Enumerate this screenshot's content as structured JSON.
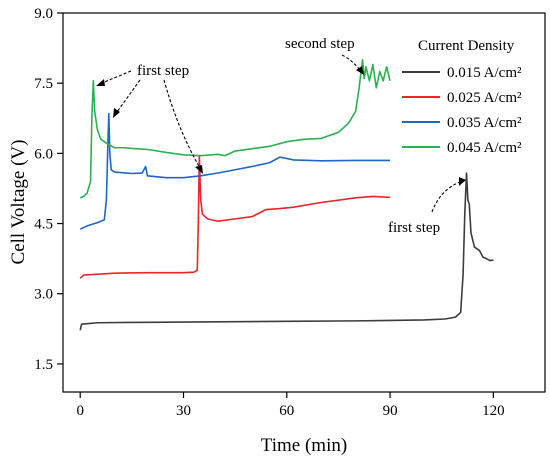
{
  "chart_data": {
    "type": "line",
    "title": "",
    "xlabel": "Time (min)",
    "ylabel": "Cell Voltage (V)",
    "xlim": [
      -5,
      135
    ],
    "ylim": [
      0.9,
      9.0
    ],
    "xticks": [
      "0",
      "30",
      "60",
      "90",
      "120"
    ],
    "yticks": [
      "1.5",
      "3.0",
      "4.5",
      "6.0",
      "7.5",
      "9.0"
    ],
    "legend": {
      "title": "Current Density",
      "placement": "top-right",
      "entries": [
        "0.015 A/cm²",
        "0.025 A/cm²",
        "0.035 A/cm²",
        "0.045 A/cm²"
      ]
    },
    "annotations": [
      {
        "text": "first step",
        "near": "0.045 and 0.035 A/cm² peaks"
      },
      {
        "text": "second step",
        "near": "0.045 A/cm² late rise"
      },
      {
        "text": "first step",
        "near": "0.015 A/cm² peak"
      }
    ],
    "series": [
      {
        "name": "0.015 A/cm²",
        "color": "#3d3d3d",
        "points": [
          [
            0,
            2.22
          ],
          [
            0.4,
            2.35
          ],
          [
            5,
            2.38
          ],
          [
            20,
            2.39
          ],
          [
            40,
            2.4
          ],
          [
            60,
            2.41
          ],
          [
            80,
            2.42
          ],
          [
            100,
            2.44
          ],
          [
            106,
            2.46
          ],
          [
            109,
            2.5
          ],
          [
            110.5,
            2.6
          ],
          [
            111.2,
            3.4
          ],
          [
            111.7,
            4.7
          ],
          [
            112.2,
            5.58
          ],
          [
            112.6,
            5.0
          ],
          [
            113,
            4.92
          ],
          [
            113.5,
            4.3
          ],
          [
            114.5,
            4.0
          ],
          [
            116,
            3.92
          ],
          [
            117,
            3.78
          ],
          [
            118,
            3.75
          ],
          [
            119,
            3.71
          ],
          [
            120,
            3.72
          ]
        ]
      },
      {
        "name": "0.025 A/cm²",
        "color": "#e8262b",
        "points": [
          [
            0,
            3.33
          ],
          [
            1,
            3.4
          ],
          [
            10,
            3.44
          ],
          [
            20,
            3.45
          ],
          [
            30,
            3.45
          ],
          [
            33,
            3.46
          ],
          [
            34,
            3.5
          ],
          [
            34.3,
            4.5
          ],
          [
            34.6,
            5.95
          ],
          [
            35,
            5.0
          ],
          [
            35.5,
            4.7
          ],
          [
            37,
            4.6
          ],
          [
            40,
            4.55
          ],
          [
            45,
            4.6
          ],
          [
            50,
            4.65
          ],
          [
            54,
            4.8
          ],
          [
            58,
            4.82
          ],
          [
            62,
            4.85
          ],
          [
            66,
            4.9
          ],
          [
            70,
            4.95
          ],
          [
            75,
            5.0
          ],
          [
            80,
            5.05
          ],
          [
            85,
            5.08
          ],
          [
            90,
            5.06
          ]
        ]
      },
      {
        "name": "0.035 A/cm²",
        "color": "#1f66c6",
        "points": [
          [
            0,
            4.38
          ],
          [
            2,
            4.45
          ],
          [
            5,
            4.52
          ],
          [
            7,
            4.58
          ],
          [
            7.6,
            5.0
          ],
          [
            8.0,
            6.1
          ],
          [
            8.3,
            6.85
          ],
          [
            8.6,
            6.0
          ],
          [
            9,
            5.65
          ],
          [
            10,
            5.6
          ],
          [
            15,
            5.57
          ],
          [
            18,
            5.58
          ],
          [
            19,
            5.72
          ],
          [
            19.5,
            5.52
          ],
          [
            25,
            5.48
          ],
          [
            30,
            5.48
          ],
          [
            35,
            5.52
          ],
          [
            40,
            5.58
          ],
          [
            45,
            5.65
          ],
          [
            50,
            5.72
          ],
          [
            55,
            5.8
          ],
          [
            58,
            5.92
          ],
          [
            62,
            5.86
          ],
          [
            70,
            5.84
          ],
          [
            80,
            5.85
          ],
          [
            85,
            5.85
          ],
          [
            90,
            5.85
          ]
        ]
      },
      {
        "name": "0.045 A/cm²",
        "color": "#2db052",
        "points": [
          [
            0,
            5.05
          ],
          [
            1,
            5.08
          ],
          [
            2,
            5.15
          ],
          [
            3,
            5.4
          ],
          [
            3.4,
            6.8
          ],
          [
            3.8,
            7.55
          ],
          [
            4.2,
            6.9
          ],
          [
            5,
            6.5
          ],
          [
            6,
            6.3
          ],
          [
            8,
            6.2
          ],
          [
            10,
            6.12
          ],
          [
            13,
            6.12
          ],
          [
            16,
            6.1
          ],
          [
            20,
            6.08
          ],
          [
            25,
            6.02
          ],
          [
            30,
            5.97
          ],
          [
            35,
            5.95
          ],
          [
            40,
            5.98
          ],
          [
            42,
            5.95
          ],
          [
            45,
            6.05
          ],
          [
            50,
            6.1
          ],
          [
            55,
            6.15
          ],
          [
            60,
            6.25
          ],
          [
            65,
            6.3
          ],
          [
            70,
            6.32
          ],
          [
            75,
            6.45
          ],
          [
            78,
            6.65
          ],
          [
            80,
            6.9
          ],
          [
            81,
            7.4
          ],
          [
            82,
            8.0
          ],
          [
            82.5,
            7.6
          ],
          [
            83,
            7.85
          ],
          [
            84,
            7.55
          ],
          [
            85,
            7.9
          ],
          [
            86,
            7.4
          ],
          [
            87,
            7.75
          ],
          [
            88,
            7.55
          ],
          [
            89,
            7.85
          ],
          [
            90,
            7.55
          ]
        ]
      }
    ]
  }
}
